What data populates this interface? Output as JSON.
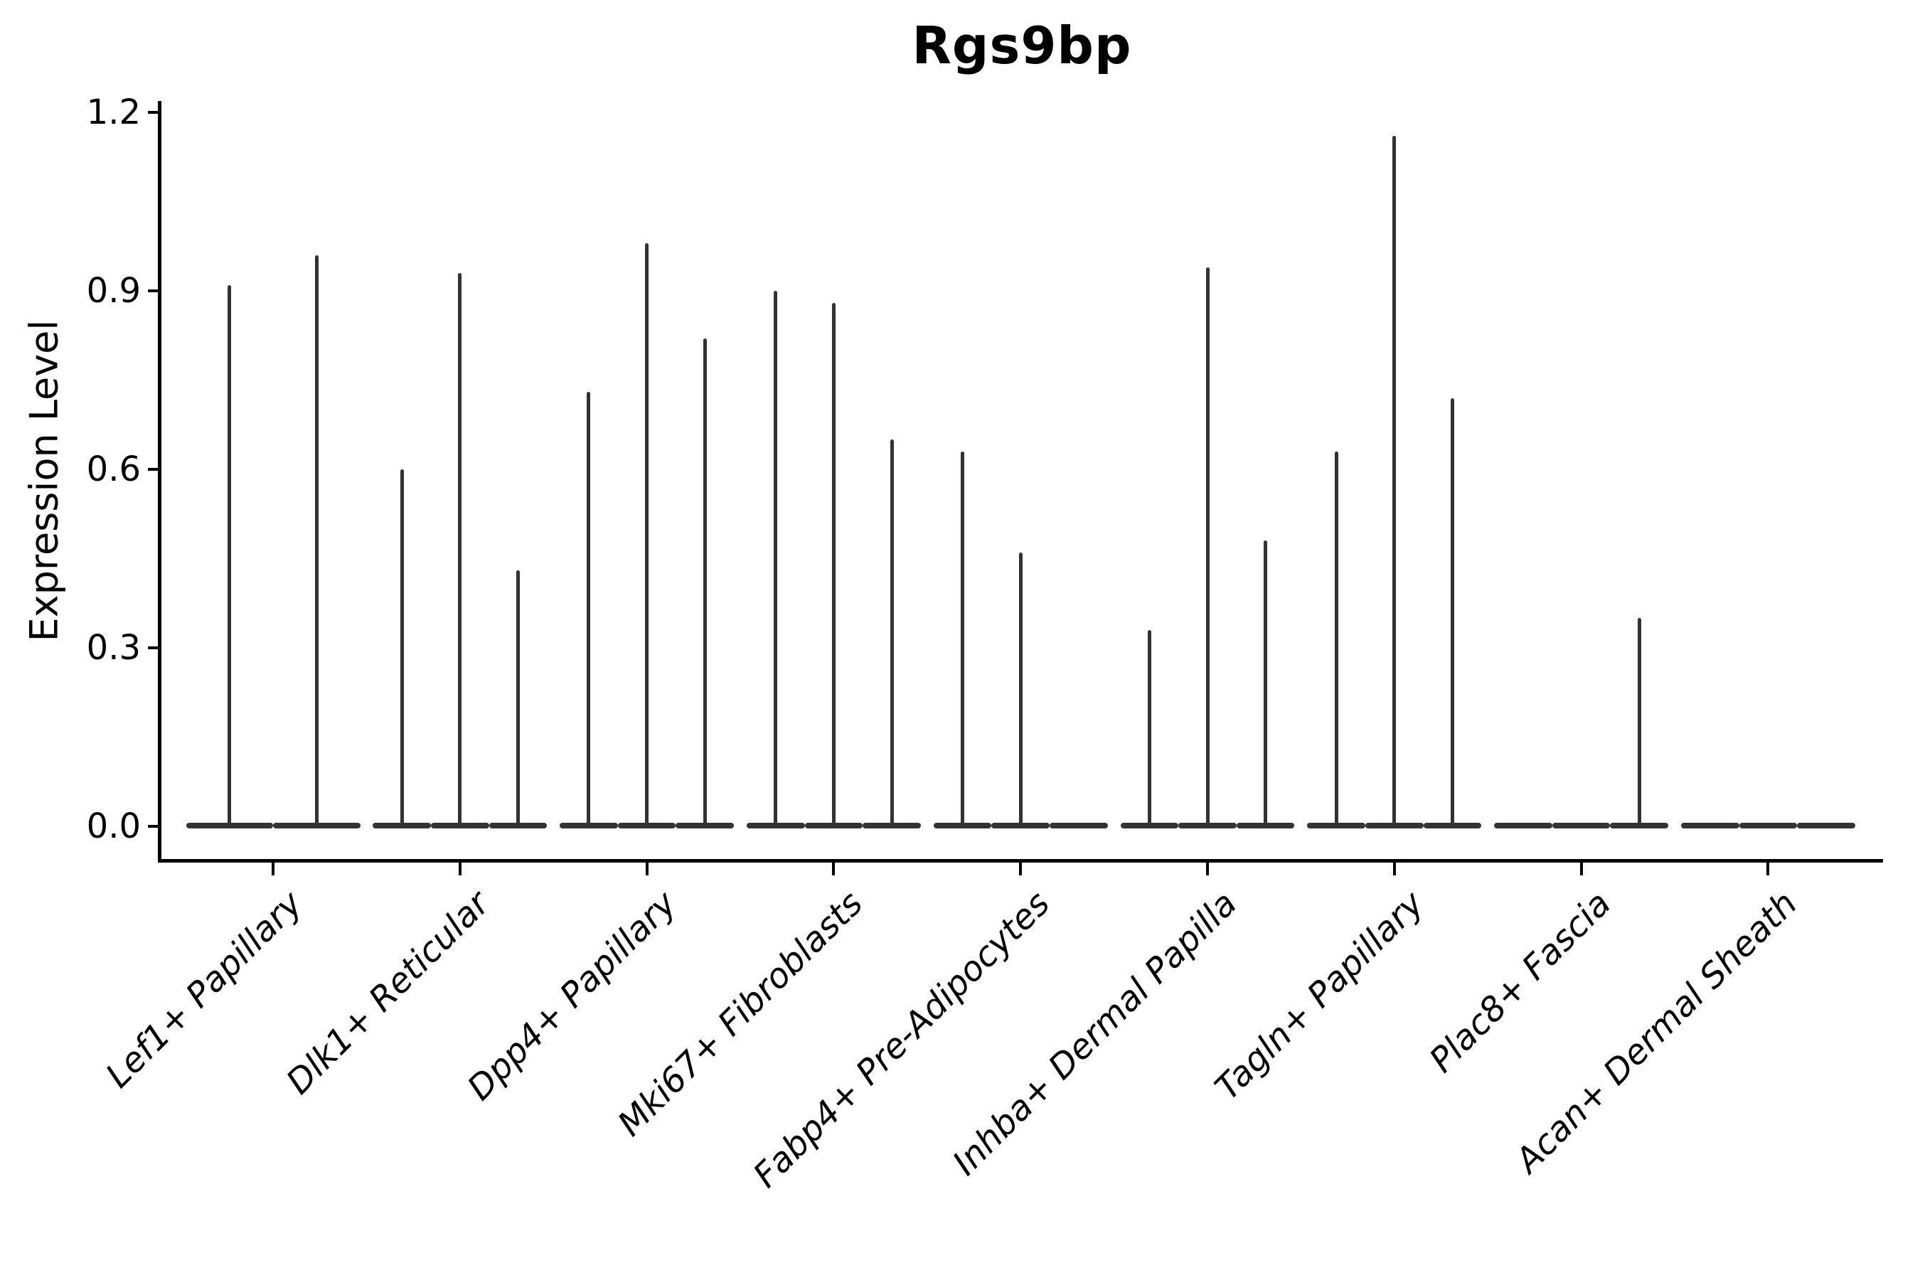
{
  "figure": {
    "background": "#ffffff",
    "ink_color": "#000000",
    "violin_color": "#333333"
  },
  "chart_data": {
    "type": "violin",
    "title": "Rgs9bp",
    "xlabel": "",
    "ylabel": "Expression Level",
    "yticks": [
      0.0,
      0.3,
      0.6,
      0.9,
      1.2
    ],
    "ylim": [
      -0.06,
      1.22
    ],
    "grid": false,
    "legend": "none",
    "x_tick_rotation": 45,
    "x_tick_style": "italic",
    "description": "Violin plot of Rgs9bp expression; violins are collapsed at 0 with thin tails; each category holds one violin per sample, listed left to right by tail maximum (expression level units).",
    "categories": [
      "Lef1+ Papillary",
      "Dlk1+ Reticular",
      "Dpp4+ Papillary",
      "Mki67+ Fibroblasts",
      "Fabp4+ Pre-Adipocytes",
      "Inhba+ Dermal Papilla",
      "Tagln+ Papillary",
      "Plac8+ Fascia",
      "Acan+ Dermal Sheath"
    ],
    "groups": [
      {
        "label": "Lef1+ Papillary",
        "violin_maxima": [
          0.91,
          0.96
        ]
      },
      {
        "label": "Dlk1+ Reticular",
        "violin_maxima": [
          0.6,
          0.93,
          0.43
        ]
      },
      {
        "label": "Dpp4+ Papillary",
        "violin_maxima": [
          0.73,
          0.98,
          0.82
        ]
      },
      {
        "label": "Mki67+ Fibroblasts",
        "violin_maxima": [
          0.9,
          0.88,
          0.65
        ]
      },
      {
        "label": "Fabp4+ Pre-Adipocytes",
        "violin_maxima": [
          0.63,
          0.46,
          0.0
        ]
      },
      {
        "label": "Inhba+ Dermal Papilla",
        "violin_maxima": [
          0.33,
          0.94,
          0.48
        ]
      },
      {
        "label": "Tagln+ Papillary",
        "violin_maxima": [
          0.63,
          1.16,
          0.72
        ]
      },
      {
        "label": "Plac8+ Fascia",
        "violin_maxima": [
          0.0,
          0.0,
          0.35
        ]
      },
      {
        "label": "Acan+ Dermal Sheath",
        "violin_maxima": [
          0.0,
          0.0,
          0.0
        ]
      }
    ]
  }
}
